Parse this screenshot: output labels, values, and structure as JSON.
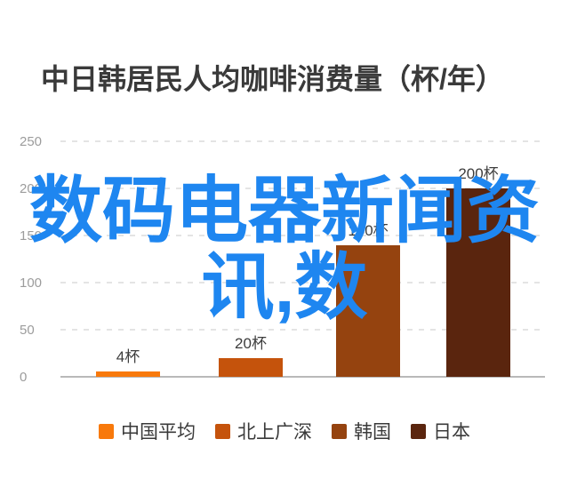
{
  "title": "中日韩居民人均咖啡消费量（杯/年）",
  "watermark": {
    "text": "数码电器新闻资讯,数",
    "line1": "数码电器新闻资",
    "line2": "讯,数",
    "color": "#1e86f0"
  },
  "chart_data": {
    "type": "bar",
    "title": "中日韩居民人均咖啡消费量（杯/年）",
    "categories": [
      "中国平均",
      "北上广深",
      "韩国",
      "日本"
    ],
    "values": [
      4,
      20,
      140,
      200
    ],
    "value_labels": [
      "4杯",
      "20杯",
      "140杯",
      "200杯"
    ],
    "colors": [
      "#f8790b",
      "#c5530c",
      "#95430f",
      "#5a250e"
    ],
    "ylabel": "杯/年",
    "y_ticks": [
      "250",
      "200",
      "150",
      "100",
      "50",
      "0"
    ],
    "ylim": [
      0,
      250
    ],
    "grid": "horizontal-dashed",
    "legend_position": "bottom"
  },
  "legend": {
    "items": [
      {
        "label": "中国平均",
        "color": "#f8790b"
      },
      {
        "label": "北上广深",
        "color": "#c5530c"
      },
      {
        "label": "韩国",
        "color": "#95430f"
      },
      {
        "label": "日本",
        "color": "#5a250e"
      }
    ]
  }
}
